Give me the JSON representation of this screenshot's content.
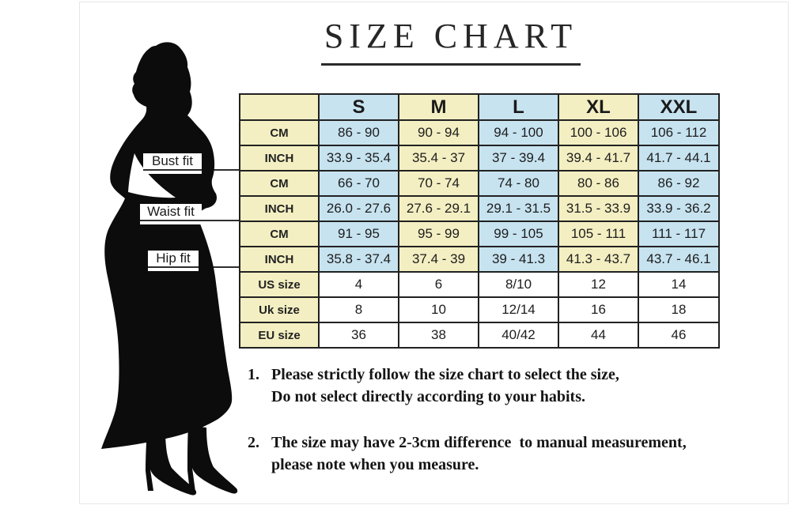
{
  "title": {
    "text": "SIZE CHART"
  },
  "figure": {
    "description": "black silhouette of a woman in a long mermaid dress and high heels",
    "fit_labels": [
      {
        "text": "Bust fit"
      },
      {
        "text": "Waist fit"
      },
      {
        "text": "Hip fit"
      }
    ]
  },
  "table": {
    "sizes": [
      "S",
      "M",
      "L",
      "XL",
      "XXL"
    ],
    "rows": [
      {
        "label": "CM",
        "group": "bust",
        "values": [
          "86 - 90",
          "90 - 94",
          "94 - 100",
          "100 - 106",
          "106 - 112"
        ]
      },
      {
        "label": "INCH",
        "group": "bust",
        "values": [
          "33.9 - 35.4",
          "35.4 - 37",
          "37 - 39.4",
          "39.4 - 41.7",
          "41.7 - 44.1"
        ]
      },
      {
        "label": "CM",
        "group": "waist",
        "values": [
          "66 - 70",
          "70 - 74",
          "74 - 80",
          "80 - 86",
          "86 - 92"
        ]
      },
      {
        "label": "INCH",
        "group": "waist",
        "values": [
          "26.0 - 27.6",
          "27.6 - 29.1",
          "29.1 - 31.5",
          "31.5 - 33.9",
          "33.9 - 36.2"
        ]
      },
      {
        "label": "CM",
        "group": "hip",
        "values": [
          "91 - 95",
          "95 - 99",
          "99 - 105",
          "105 - 111",
          "111 - 117"
        ]
      },
      {
        "label": "INCH",
        "group": "hip",
        "values": [
          "35.8 - 37.4",
          "37.4 - 39",
          "39 - 41.3",
          "41.3 - 43.7",
          "43.7 - 46.1"
        ]
      },
      {
        "label": "US size",
        "group": "conversion",
        "values": [
          "4",
          "6",
          "8/10",
          "12",
          "14"
        ]
      },
      {
        "label": "Uk size",
        "group": "conversion",
        "values": [
          "8",
          "10",
          "12/14",
          "16",
          "18"
        ]
      },
      {
        "label": "EU size",
        "group": "conversion",
        "values": [
          "36",
          "38",
          "40/42",
          "44",
          "46"
        ]
      }
    ]
  },
  "notes": [
    {
      "num": "1.",
      "lines": [
        "Please strictly follow the size chart to select the size,",
        "Do not select directly according to your habits."
      ]
    },
    {
      "num": "2.",
      "lines": [
        "The size may have 2-3cm difference  to manual measurement,",
        "please note when you measure."
      ]
    }
  ],
  "colors": {
    "cell_yellow": "#f3efc2",
    "cell_blue": "#c7e3f0",
    "table_border": "#212121",
    "silhouette": "#0c0c0c",
    "frame_border": "#e6e6e6"
  }
}
